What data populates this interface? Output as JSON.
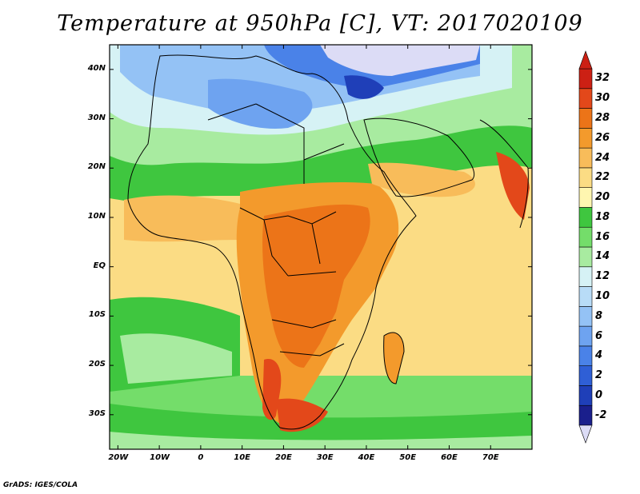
{
  "title": "Temperature at 950hPa [C], VT: 2017020109",
  "footer": "GrADS: IGES/COLA",
  "axes": {
    "lon_labels": [
      "20W",
      "10W",
      "0",
      "10E",
      "20E",
      "30E",
      "40E",
      "50E",
      "60E",
      "70E"
    ],
    "lon_values": [
      -20,
      -10,
      0,
      10,
      20,
      30,
      40,
      50,
      60,
      70
    ],
    "lat_labels": [
      "40N",
      "30N",
      "20N",
      "10N",
      "EQ",
      "10S",
      "20S",
      "30S"
    ],
    "lat_values": [
      40,
      30,
      20,
      10,
      0,
      -10,
      -20,
      -30
    ],
    "lon_range": [
      -22,
      80
    ],
    "lat_range": [
      -37,
      45
    ]
  },
  "colorbar": {
    "labels": [
      "-2",
      "0",
      "2",
      "4",
      "6",
      "8",
      "10",
      "12",
      "14",
      "16",
      "18",
      "20",
      "22",
      "24",
      "26",
      "28",
      "30",
      "32"
    ],
    "colors": [
      "#1a1f8c",
      "#1f3fb8",
      "#2f5fd6",
      "#4a82e8",
      "#6ea3f0",
      "#94c2f5",
      "#b8dcf7",
      "#d6f2f5",
      "#a8eba0",
      "#74dd6a",
      "#3fc63f",
      "#fff6b0",
      "#fbdc84",
      "#f8bc5a",
      "#f39a2c",
      "#ec7418",
      "#e3481a",
      "#cc2014"
    ],
    "units": "C"
  },
  "colors": {
    "ocean_warm": "#fbdc84",
    "ocean_mid": "#74dd6a",
    "land_hot": "#ec7418",
    "border": "#000000"
  }
}
